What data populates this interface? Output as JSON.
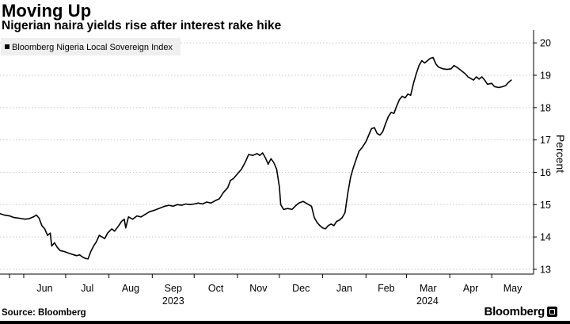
{
  "title": "Moving Up",
  "subtitle": "Nigerian naira yields rise after interest rake hike",
  "source": "Source: Bloomberg",
  "brand": "Bloomberg",
  "chart_data": {
    "type": "line",
    "title": "Moving Up",
    "subtitle": "Nigerian naira yields rise after interest rake hike",
    "ylabel": "Percent",
    "xlabel": "",
    "ylim": [
      12.95,
      20.2
    ],
    "y_ticks": [
      13,
      14,
      15,
      16,
      17,
      18,
      19,
      20
    ],
    "y_side": "right",
    "grid": "horizontal-dashed",
    "legend": {
      "position": "top-left",
      "entries": [
        "Bloomberg Nigeria Local Sovereign Index"
      ]
    },
    "x_ticks": [
      {
        "date": "2023-06-01",
        "label": "Jun"
      },
      {
        "date": "2023-07-01",
        "label": "Jul"
      },
      {
        "date": "2023-08-01",
        "label": "Aug"
      },
      {
        "date": "2023-09-01",
        "label": "Sep"
      },
      {
        "date": "2023-10-01",
        "label": "Oct"
      },
      {
        "date": "2023-11-01",
        "label": "Nov"
      },
      {
        "date": "2023-12-01",
        "label": "Dec"
      },
      {
        "date": "2024-01-01",
        "label": "Jan"
      },
      {
        "date": "2024-02-01",
        "label": "Feb"
      },
      {
        "date": "2024-03-01",
        "label": "Mar"
      },
      {
        "date": "2024-04-01",
        "label": "Apr"
      },
      {
        "date": "2024-05-01",
        "label": "May"
      }
    ],
    "year_labels": [
      {
        "date": "2023-09-01",
        "label": "2023"
      },
      {
        "date": "2024-03-01",
        "label": "2024"
      }
    ],
    "xlim": [
      "2023-05-15",
      "2024-05-31"
    ],
    "series": [
      {
        "name": "Bloomberg Nigeria Local Sovereign Index",
        "color": "#000000",
        "points": [
          [
            "2023-05-15",
            14.72
          ],
          [
            "2023-05-18",
            14.68
          ],
          [
            "2023-05-22",
            14.65
          ],
          [
            "2023-05-25",
            14.6
          ],
          [
            "2023-05-29",
            14.58
          ],
          [
            "2023-06-02",
            14.55
          ],
          [
            "2023-06-05",
            14.57
          ],
          [
            "2023-06-08",
            14.62
          ],
          [
            "2023-06-10",
            14.68
          ],
          [
            "2023-06-12",
            14.58
          ],
          [
            "2023-06-14",
            14.35
          ],
          [
            "2023-06-16",
            14.25
          ],
          [
            "2023-06-18",
            14.05
          ],
          [
            "2023-06-20",
            14.12
          ],
          [
            "2023-06-21",
            13.72
          ],
          [
            "2023-06-23",
            13.82
          ],
          [
            "2023-06-25",
            13.68
          ],
          [
            "2023-06-27",
            13.58
          ],
          [
            "2023-06-30",
            13.55
          ],
          [
            "2023-07-03",
            13.5
          ],
          [
            "2023-07-06",
            13.46
          ],
          [
            "2023-07-09",
            13.42
          ],
          [
            "2023-07-11",
            13.45
          ],
          [
            "2023-07-13",
            13.38
          ],
          [
            "2023-07-15",
            13.34
          ],
          [
            "2023-07-17",
            13.32
          ],
          [
            "2023-07-19",
            13.55
          ],
          [
            "2023-07-21",
            13.72
          ],
          [
            "2023-07-23",
            13.85
          ],
          [
            "2023-07-25",
            14.05
          ],
          [
            "2023-07-27",
            14.0
          ],
          [
            "2023-07-29",
            13.95
          ],
          [
            "2023-07-31",
            14.12
          ],
          [
            "2023-08-03",
            14.25
          ],
          [
            "2023-08-05",
            14.18
          ],
          [
            "2023-08-08",
            14.35
          ],
          [
            "2023-08-10",
            14.48
          ],
          [
            "2023-08-12",
            14.55
          ],
          [
            "2023-08-13",
            14.28
          ],
          [
            "2023-08-15",
            14.62
          ],
          [
            "2023-08-18",
            14.55
          ],
          [
            "2023-08-21",
            14.65
          ],
          [
            "2023-08-24",
            14.62
          ],
          [
            "2023-08-27",
            14.7
          ],
          [
            "2023-08-30",
            14.78
          ],
          [
            "2023-09-02",
            14.82
          ],
          [
            "2023-09-04",
            14.85
          ],
          [
            "2023-09-07",
            14.9
          ],
          [
            "2023-09-10",
            14.95
          ],
          [
            "2023-09-13",
            14.98
          ],
          [
            "2023-09-16",
            14.95
          ],
          [
            "2023-09-19",
            15.0
          ],
          [
            "2023-09-22",
            14.98
          ],
          [
            "2023-09-25",
            15.02
          ],
          [
            "2023-09-28",
            15.0
          ],
          [
            "2023-10-01",
            15.02
          ],
          [
            "2023-10-04",
            15.05
          ],
          [
            "2023-10-07",
            15.02
          ],
          [
            "2023-10-10",
            15.08
          ],
          [
            "2023-10-13",
            15.05
          ],
          [
            "2023-10-16",
            15.12
          ],
          [
            "2023-10-19",
            15.18
          ],
          [
            "2023-10-22",
            15.38
          ],
          [
            "2023-10-25",
            15.52
          ],
          [
            "2023-10-27",
            15.75
          ],
          [
            "2023-10-29",
            15.8
          ],
          [
            "2023-11-01",
            15.95
          ],
          [
            "2023-11-04",
            16.1
          ],
          [
            "2023-11-07",
            16.35
          ],
          [
            "2023-11-09",
            16.55
          ],
          [
            "2023-11-12",
            16.52
          ],
          [
            "2023-11-15",
            16.58
          ],
          [
            "2023-11-17",
            16.52
          ],
          [
            "2023-11-19",
            16.6
          ],
          [
            "2023-11-21",
            16.45
          ],
          [
            "2023-11-23",
            16.25
          ],
          [
            "2023-11-25",
            16.42
          ],
          [
            "2023-11-27",
            16.3
          ],
          [
            "2023-11-29",
            16.1
          ],
          [
            "2023-12-01",
            15.55
          ],
          [
            "2023-12-02",
            15.0
          ],
          [
            "2023-12-04",
            14.85
          ],
          [
            "2023-12-07",
            14.88
          ],
          [
            "2023-12-10",
            14.85
          ],
          [
            "2023-12-13",
            14.98
          ],
          [
            "2023-12-15",
            15.05
          ],
          [
            "2023-12-18",
            15.1
          ],
          [
            "2023-12-20",
            15.05
          ],
          [
            "2023-12-22",
            15.0
          ],
          [
            "2023-12-24",
            14.95
          ],
          [
            "2023-12-26",
            14.6
          ],
          [
            "2023-12-28",
            14.45
          ],
          [
            "2023-12-30",
            14.35
          ],
          [
            "2024-01-01",
            14.28
          ],
          [
            "2024-01-03",
            14.25
          ],
          [
            "2024-01-05",
            14.35
          ],
          [
            "2024-01-07",
            14.4
          ],
          [
            "2024-01-09",
            14.35
          ],
          [
            "2024-01-11",
            14.48
          ],
          [
            "2024-01-13",
            14.52
          ],
          [
            "2024-01-15",
            14.6
          ],
          [
            "2024-01-17",
            14.75
          ],
          [
            "2024-01-19",
            15.35
          ],
          [
            "2024-01-21",
            15.85
          ],
          [
            "2024-01-23",
            16.15
          ],
          [
            "2024-01-25",
            16.4
          ],
          [
            "2024-01-27",
            16.65
          ],
          [
            "2024-01-29",
            16.75
          ],
          [
            "2024-02-01",
            16.95
          ],
          [
            "2024-02-03",
            17.15
          ],
          [
            "2024-02-05",
            17.35
          ],
          [
            "2024-02-07",
            17.38
          ],
          [
            "2024-02-09",
            17.2
          ],
          [
            "2024-02-11",
            17.15
          ],
          [
            "2024-02-13",
            17.25
          ],
          [
            "2024-02-15",
            17.5
          ],
          [
            "2024-02-17",
            17.72
          ],
          [
            "2024-02-19",
            17.85
          ],
          [
            "2024-02-21",
            17.82
          ],
          [
            "2024-02-23",
            18.05
          ],
          [
            "2024-02-25",
            18.25
          ],
          [
            "2024-02-27",
            18.35
          ],
          [
            "2024-02-29",
            18.3
          ],
          [
            "2024-03-02",
            18.42
          ],
          [
            "2024-03-04",
            18.38
          ],
          [
            "2024-03-06",
            18.75
          ],
          [
            "2024-03-08",
            19.05
          ],
          [
            "2024-03-10",
            19.3
          ],
          [
            "2024-03-12",
            19.45
          ],
          [
            "2024-03-14",
            19.38
          ],
          [
            "2024-03-16",
            19.45
          ],
          [
            "2024-03-18",
            19.52
          ],
          [
            "2024-03-20",
            19.55
          ],
          [
            "2024-03-22",
            19.35
          ],
          [
            "2024-03-24",
            19.25
          ],
          [
            "2024-03-27",
            19.2
          ],
          [
            "2024-03-30",
            19.18
          ],
          [
            "2024-04-02",
            19.2
          ],
          [
            "2024-04-04",
            19.3
          ],
          [
            "2024-04-06",
            19.25
          ],
          [
            "2024-04-09",
            19.15
          ],
          [
            "2024-04-12",
            19.05
          ],
          [
            "2024-04-14",
            18.95
          ],
          [
            "2024-04-16",
            18.9
          ],
          [
            "2024-04-18",
            18.85
          ],
          [
            "2024-04-20",
            18.95
          ],
          [
            "2024-04-22",
            18.88
          ],
          [
            "2024-04-24",
            18.95
          ],
          [
            "2024-04-26",
            18.85
          ],
          [
            "2024-04-28",
            18.72
          ],
          [
            "2024-05-01",
            18.75
          ],
          [
            "2024-05-03",
            18.65
          ],
          [
            "2024-05-06",
            18.62
          ],
          [
            "2024-05-09",
            18.65
          ],
          [
            "2024-05-11",
            18.68
          ],
          [
            "2024-05-13",
            18.78
          ],
          [
            "2024-05-15",
            18.85
          ]
        ]
      }
    ]
  }
}
